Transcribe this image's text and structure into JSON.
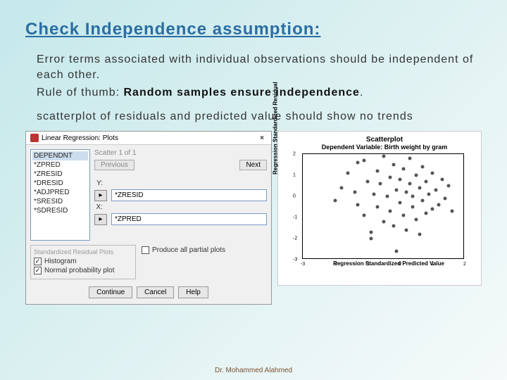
{
  "title": "Check Independence assumption:",
  "para1a": "Error terms associated with individual observations should be independent of each other.",
  "para1b_pre": "Rule of thumb: ",
  "para1b_bold": "Random samples ensure independence",
  "para1b_post": ".",
  "para2": "scatterplot of residuals and predicted value should show no trends",
  "footer": "Dr. Mohammed Alahmed",
  "dialog": {
    "title": "Linear Regression: Plots",
    "close": "×",
    "list": [
      "DEPENDNT",
      "*ZPRED",
      "*ZRESID",
      "*DRESID",
      "*ADJPRED",
      "*SRESID",
      "*SDRESID"
    ],
    "scatter_label": "Scatter 1 of 1",
    "prev": "Previous",
    "next": "Next",
    "y_label": "Y:",
    "y_value": "*ZRESID",
    "x_label": "X:",
    "x_value": "*ZPRED",
    "std_label": "Standardized Residual Plots",
    "chk_hist": "Histogram",
    "chk_npp": "Normal probability plot",
    "partial": "Produce all partial plots",
    "btn_continue": "Continue",
    "btn_cancel": "Cancel",
    "btn_help": "Help"
  },
  "chart": {
    "title": "Scatterplot",
    "subtitle": "Dependent Variable: Birth weight by gram",
    "ylabel": "Regression Standardized Residual",
    "xlabel": "Regression Standardized Predicted Value",
    "xlim": [
      -3,
      2
    ],
    "ylim": [
      -3,
      2
    ],
    "xticks": [
      -3,
      -2,
      -1,
      0,
      1,
      2
    ],
    "yticks": [
      -3,
      -2,
      -1,
      0,
      1,
      2
    ],
    "point_color": "#555555",
    "points": [
      [
        -1.6,
        1.1
      ],
      [
        -1.4,
        0.2
      ],
      [
        -1.3,
        -0.4
      ],
      [
        -1.3,
        1.6
      ],
      [
        -1.1,
        -0.9
      ],
      [
        -1.0,
        0.7
      ],
      [
        -0.9,
        -1.7
      ],
      [
        -0.8,
        0.1
      ],
      [
        -0.7,
        1.2
      ],
      [
        -0.7,
        -0.5
      ],
      [
        -0.6,
        0.6
      ],
      [
        -0.5,
        -1.2
      ],
      [
        -0.5,
        1.9
      ],
      [
        -0.4,
        0.0
      ],
      [
        -0.3,
        -0.7
      ],
      [
        -0.3,
        0.9
      ],
      [
        -0.2,
        1.5
      ],
      [
        -0.2,
        -1.4
      ],
      [
        -0.1,
        0.3
      ],
      [
        -0.1,
        -2.6
      ],
      [
        0.0,
        0.8
      ],
      [
        0.0,
        -0.3
      ],
      [
        0.1,
        1.3
      ],
      [
        0.1,
        -0.9
      ],
      [
        0.2,
        0.2
      ],
      [
        0.2,
        -1.6
      ],
      [
        0.3,
        0.6
      ],
      [
        0.3,
        1.8
      ],
      [
        0.4,
        -0.5
      ],
      [
        0.4,
        0.0
      ],
      [
        0.5,
        1.0
      ],
      [
        0.5,
        -1.1
      ],
      [
        0.6,
        0.4
      ],
      [
        0.7,
        -0.2
      ],
      [
        0.7,
        1.4
      ],
      [
        0.8,
        -0.8
      ],
      [
        0.8,
        0.7
      ],
      [
        0.9,
        0.1
      ],
      [
        1.0,
        -0.6
      ],
      [
        1.0,
        1.1
      ],
      [
        1.1,
        0.3
      ],
      [
        1.2,
        -0.4
      ],
      [
        1.3,
        0.8
      ],
      [
        1.4,
        -0.1
      ],
      [
        1.5,
        0.5
      ],
      [
        1.6,
        -0.7
      ],
      [
        -1.8,
        0.4
      ],
      [
        -2.0,
        -0.2
      ],
      [
        -1.1,
        1.7
      ],
      [
        -0.9,
        -2.0
      ],
      [
        0.6,
        -1.8
      ]
    ]
  }
}
